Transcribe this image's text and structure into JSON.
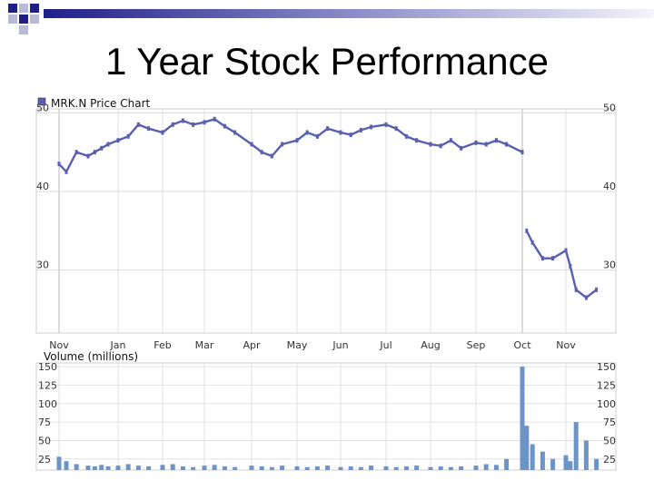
{
  "slide": {
    "title": "1 Year Stock Performance"
  },
  "colors": {
    "price_line": "#5a5fb0",
    "volume_bar": "#6c94c8",
    "grid": "#e2e2e2",
    "header_bar_dark": "#1f1f8a",
    "header_bar_light": "#b9b9d8"
  },
  "chart_data": [
    {
      "type": "line",
      "title": "MRK.N Price Chart",
      "legend_icon": "square-icon",
      "x_tick_labels": [
        "Nov",
        "Jan",
        "Feb",
        "Mar",
        "Apr",
        "May",
        "Jun",
        "Jul",
        "Aug",
        "Sep",
        "Oct",
        "Nov"
      ],
      "y_tick_labels_left": [
        "50",
        "40",
        "30"
      ],
      "y_tick_labels_right": [
        "50",
        "40",
        "30"
      ],
      "ylim": [
        22,
        50.5
      ],
      "grid": true,
      "series": [
        {
          "x": [
            "Nov 10",
            "Nov 15",
            "Nov 22",
            "Dec 1",
            "Dec 8",
            "Dec 15",
            "Dec 22",
            "Jan 1",
            "Jan 8",
            "Jan 15",
            "Jan 22",
            "Feb 1",
            "Feb 8",
            "Feb 15",
            "Feb 22",
            "Mar 1",
            "Mar 8",
            "Mar 15",
            "Mar 22",
            "Apr 1",
            "Apr 8",
            "Apr 15",
            "Apr 22",
            "May 1",
            "May 8",
            "May 15",
            "May 22",
            "Jun 1",
            "Jun 8",
            "Jun 15",
            "Jun 22",
            "Jul 1",
            "Jul 8",
            "Jul 15",
            "Jul 22",
            "Aug 1",
            "Aug 8",
            "Aug 15",
            "Aug 22",
            "Sep 1",
            "Sep 8",
            "Sep 15",
            "Sep 22",
            "Oct 1",
            "Oct 4",
            "Oct 8",
            "Oct 15",
            "Oct 22",
            "Nov 1",
            "Nov 4",
            "Nov 8",
            "Nov 15",
            "Nov 22"
          ],
          "values": [
            43.5,
            42.5,
            45.0,
            44.5,
            45.0,
            45.5,
            46.0,
            46.5,
            47.0,
            48.5,
            48.0,
            47.5,
            48.5,
            49.0,
            48.5,
            48.8,
            49.2,
            48.3,
            47.5,
            46.0,
            45.0,
            44.5,
            46.0,
            46.5,
            47.5,
            47.0,
            48.0,
            47.5,
            47.2,
            47.8,
            48.2,
            48.5,
            48.0,
            47.0,
            46.5,
            46.0,
            45.8,
            46.5,
            45.5,
            46.2,
            46.0,
            46.5,
            46.0,
            45.0,
            35.0,
            33.5,
            31.5,
            31.5,
            32.5,
            30.5,
            27.5,
            26.5,
            27.5
          ]
        }
      ]
    },
    {
      "type": "bar",
      "title": "Volume (millions)",
      "y_tick_labels_left": [
        "150",
        "125",
        "100",
        "75",
        "50",
        "25"
      ],
      "y_tick_labels_right": [
        "150",
        "125",
        "100",
        "75",
        "50",
        "25"
      ],
      "ylim": [
        10,
        155
      ],
      "grid": true,
      "categories": [
        "Nov 10",
        "Nov 15",
        "Nov 22",
        "Dec 1",
        "Dec 8",
        "Dec 15",
        "Dec 22",
        "Jan 1",
        "Jan 8",
        "Jan 15",
        "Jan 22",
        "Feb 1",
        "Feb 8",
        "Feb 15",
        "Feb 22",
        "Mar 1",
        "Mar 8",
        "Mar 15",
        "Mar 22",
        "Apr 1",
        "Apr 8",
        "Apr 15",
        "Apr 22",
        "May 1",
        "May 8",
        "May 15",
        "May 22",
        "Jun 1",
        "Jun 8",
        "Jun 15",
        "Jun 22",
        "Jul 1",
        "Jul 8",
        "Jul 15",
        "Jul 22",
        "Aug 1",
        "Aug 8",
        "Aug 15",
        "Aug 22",
        "Sep 1",
        "Sep 8",
        "Sep 15",
        "Sep 22",
        "Oct 1",
        "Oct 4",
        "Oct 8",
        "Oct 15",
        "Oct 22",
        "Nov 1",
        "Nov 4",
        "Nov 8",
        "Nov 15",
        "Nov 22"
      ],
      "values": [
        28,
        22,
        18,
        16,
        15,
        17,
        15,
        16,
        18,
        16,
        15,
        17,
        18,
        15,
        14,
        16,
        17,
        15,
        14,
        16,
        15,
        14,
        16,
        15,
        14,
        15,
        16,
        14,
        15,
        14,
        16,
        15,
        14,
        15,
        16,
        14,
        15,
        14,
        15,
        16,
        18,
        17,
        25,
        150,
        70,
        45,
        35,
        25,
        30,
        22,
        75,
        50,
        25
      ]
    }
  ]
}
